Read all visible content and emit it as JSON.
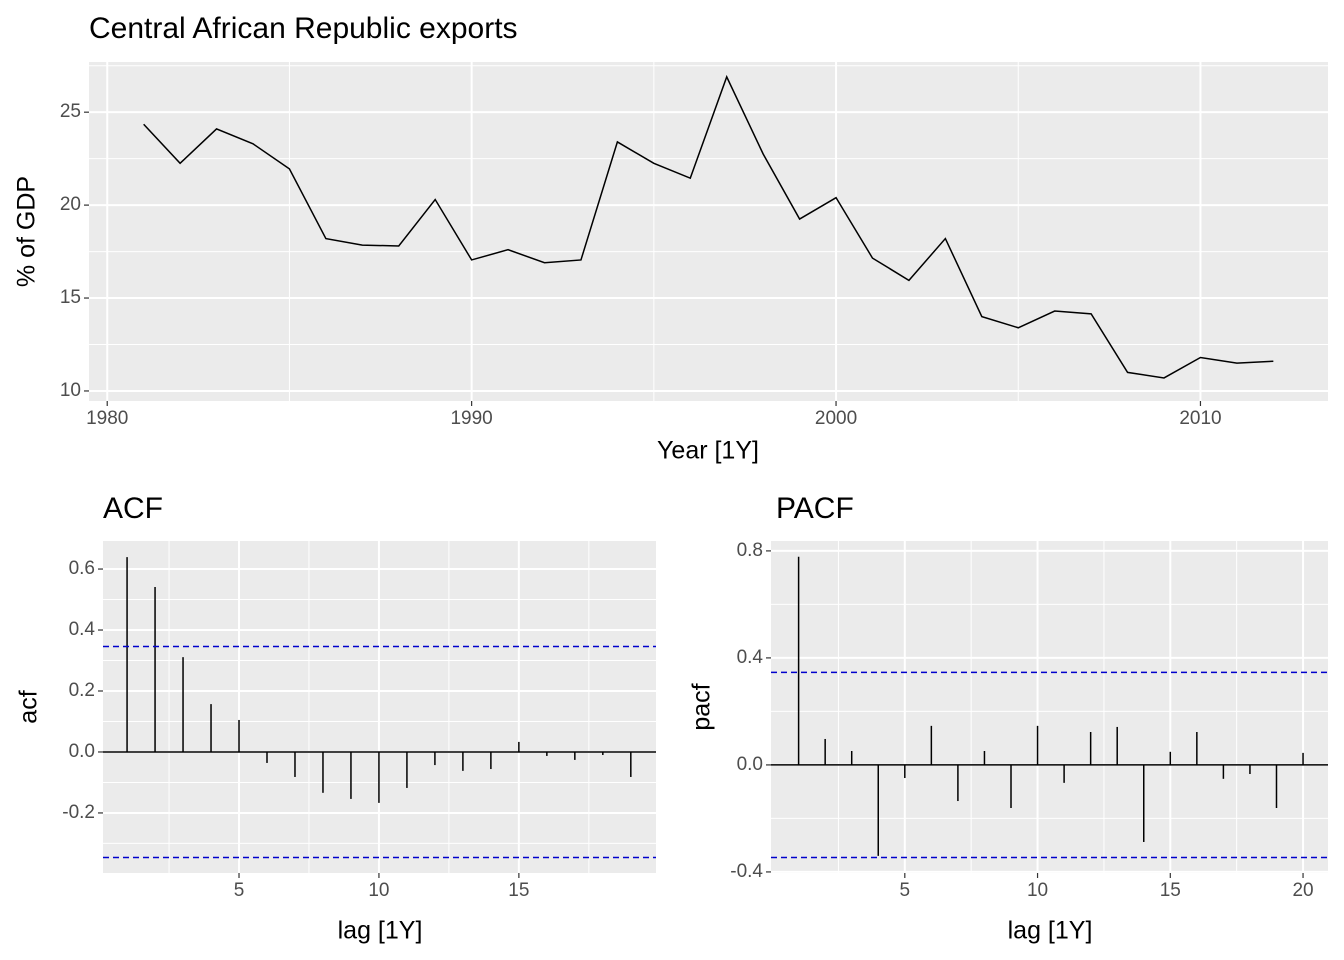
{
  "chart_data": [
    {
      "type": "line",
      "title": "Central African Republic exports",
      "x_label": "Year [1Y]",
      "y_label": "% of GDP",
      "x": [
        1981,
        1982,
        1983,
        1984,
        1985,
        1986,
        1987,
        1988,
        1989,
        1990,
        1991,
        1992,
        1993,
        1994,
        1995,
        1996,
        1997,
        1998,
        1999,
        2000,
        2001,
        2002,
        2003,
        2004,
        2005,
        2006,
        2007,
        2008,
        2009,
        2010,
        2011,
        2012
      ],
      "values": [
        24.35,
        22.25,
        24.1,
        23.3,
        21.95,
        18.2,
        17.85,
        17.8,
        20.3,
        17.05,
        17.6,
        16.9,
        17.05,
        23.4,
        22.25,
        21.45,
        26.9,
        22.75,
        19.25,
        20.4,
        17.15,
        15.95,
        18.2,
        14.0,
        13.4,
        14.3,
        14.15,
        11.0,
        10.7,
        11.8,
        11.5,
        11.6
      ],
      "color": "#000000",
      "xlim": [
        1979.5,
        2013.5
      ],
      "xticks": [
        1980,
        1990,
        2000,
        2010
      ],
      "ylim": [
        9.46,
        27.7
      ],
      "yticks": [
        10,
        15,
        20,
        25
      ],
      "grid": true
    },
    {
      "type": "stem",
      "title": "ACF",
      "x_label": "lag [1Y]",
      "y_label": "acf",
      "x": [
        1,
        2,
        3,
        4,
        5,
        6,
        7,
        8,
        9,
        10,
        11,
        12,
        13,
        14,
        15,
        16,
        17,
        18,
        19
      ],
      "values": [
        0.639,
        0.541,
        0.311,
        0.157,
        0.105,
        -0.036,
        -0.082,
        -0.134,
        -0.154,
        -0.167,
        -0.118,
        -0.043,
        -0.062,
        -0.056,
        0.033,
        -0.013,
        -0.026,
        -0.01,
        -0.082
      ],
      "color": "#000000",
      "ci": 0.346,
      "ci_color": "#0000cc",
      "xlim": [
        0.14,
        19.9
      ],
      "xticks": [
        5,
        10,
        15
      ],
      "ylim": [
        -0.397,
        0.692
      ],
      "yticks": [
        -0.2,
        {
          "value": 0,
          "label": "0.0"
        },
        0.2,
        0.4,
        0.6
      ],
      "grid": true
    },
    {
      "type": "stem",
      "title": "PACF",
      "x_label": "lag [1Y]",
      "y_label": "pacf",
      "x": [
        1,
        2,
        3,
        4,
        5,
        6,
        7,
        8,
        9,
        10,
        11,
        12,
        13,
        14,
        15,
        16,
        17,
        18,
        19,
        20
      ],
      "values": [
        0.778,
        0.097,
        0.052,
        -0.34,
        -0.049,
        0.146,
        -0.135,
        0.052,
        -0.161,
        0.146,
        -0.067,
        0.123,
        0.142,
        -0.288,
        0.049,
        0.123,
        -0.052,
        -0.034,
        -0.161,
        0.045
      ],
      "color": "#000000",
      "ci": 0.346,
      "ci_color": "#0000cc",
      "xlim": [
        -0.04,
        20.94
      ],
      "xticks": [
        5,
        10,
        15,
        20
      ],
      "ylim": [
        -0.404,
        0.837
      ],
      "yticks": [
        -0.4,
        {
          "value": 0,
          "label": "0.0"
        },
        0.4,
        0.8
      ],
      "grid": true
    }
  ]
}
